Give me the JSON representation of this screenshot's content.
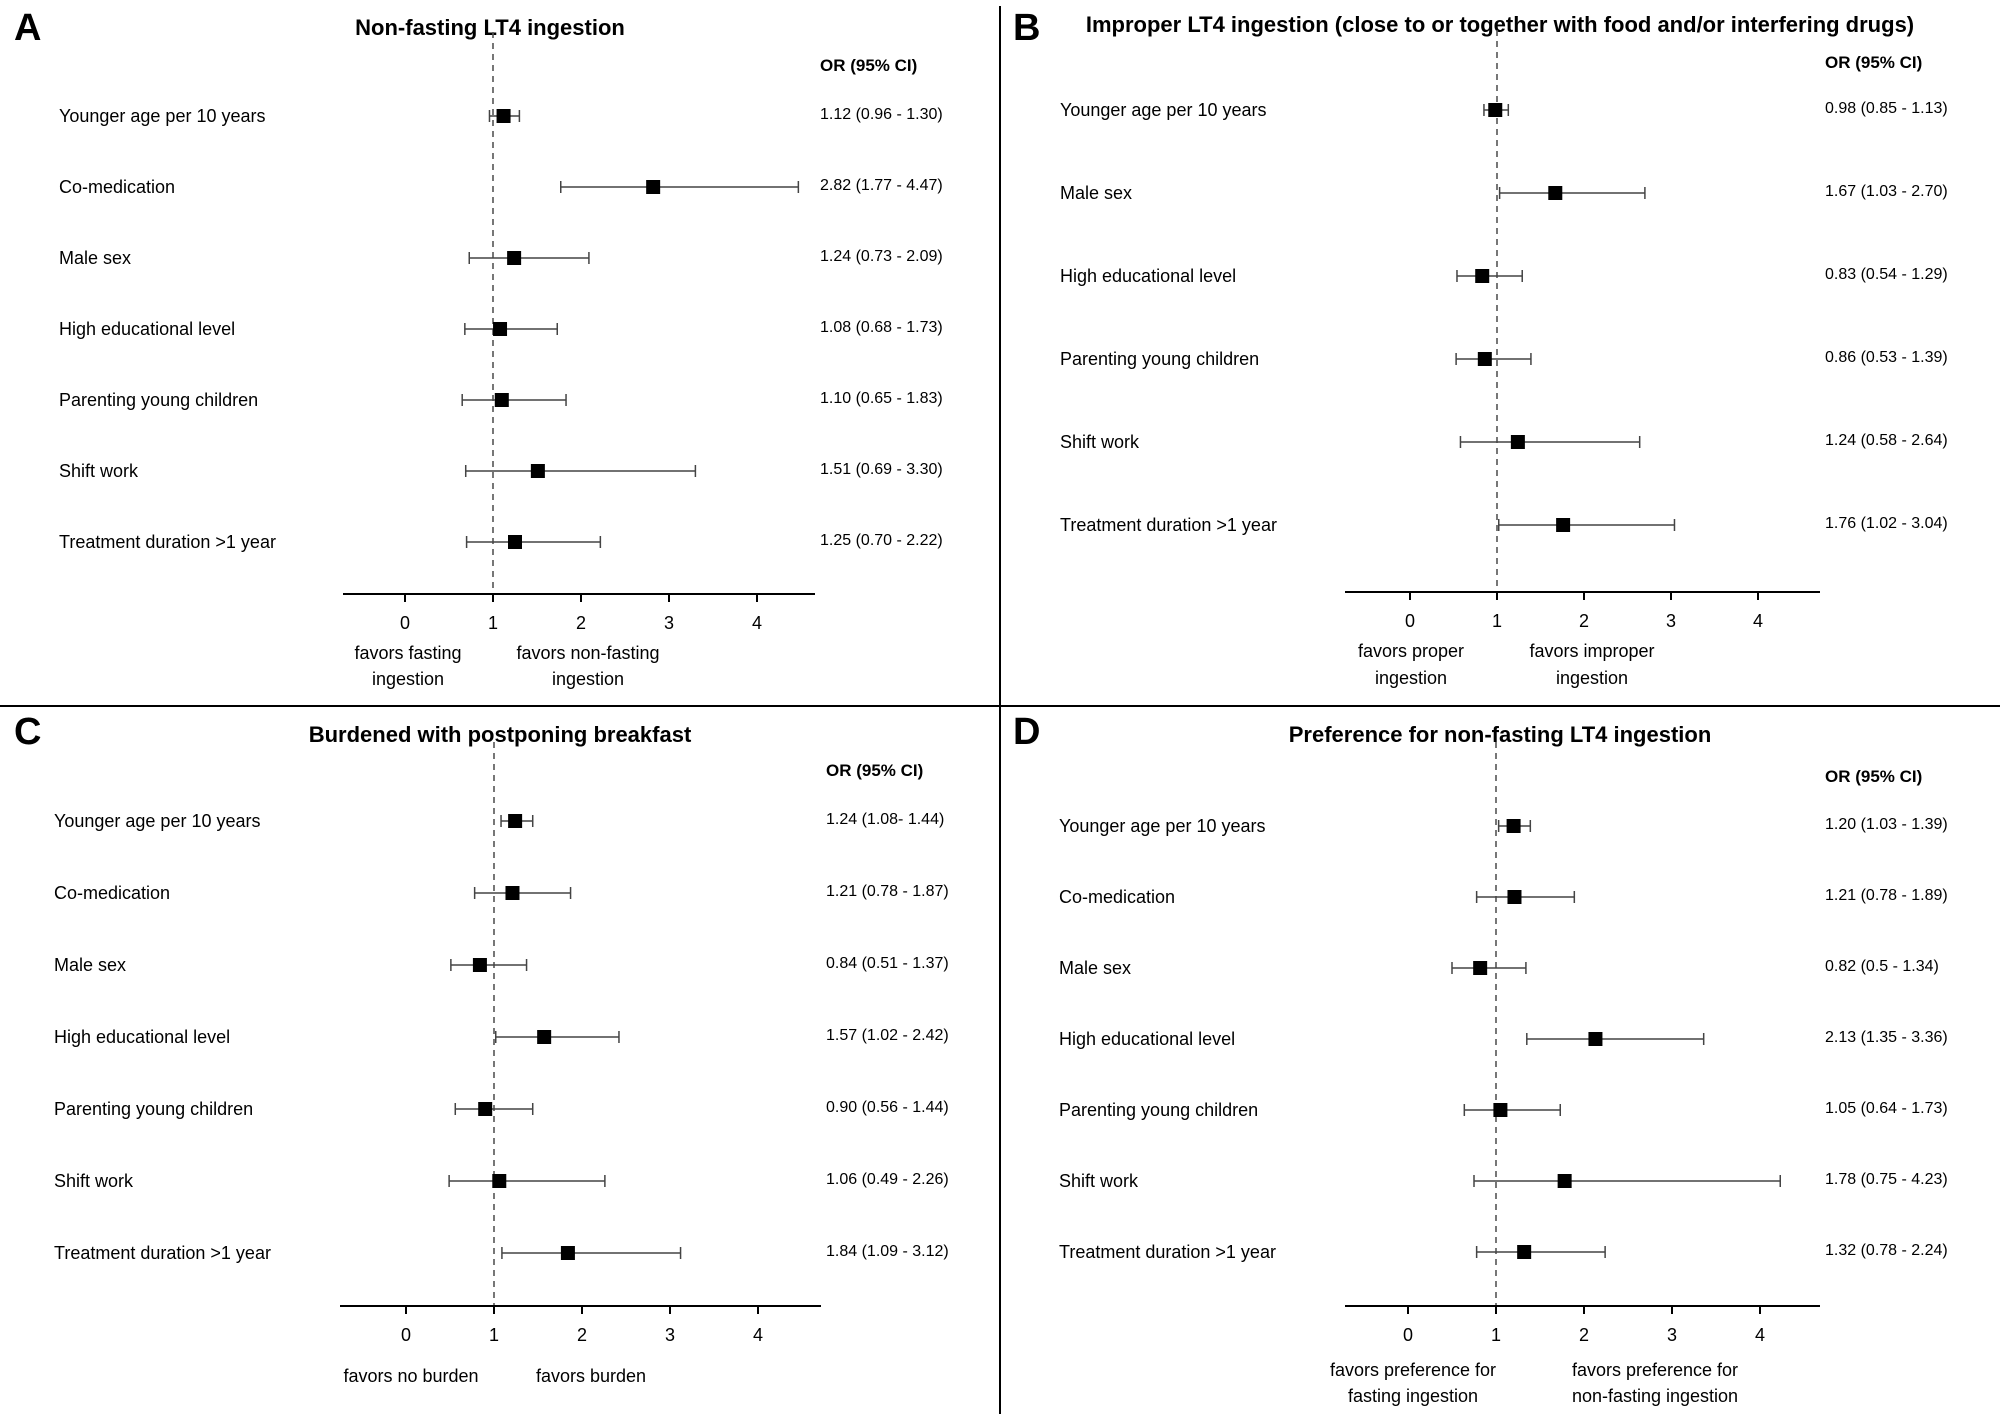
{
  "figure": {
    "or_header": "OR (95% CI)",
    "x_ticks": [
      0,
      1,
      2,
      3,
      4
    ]
  },
  "chart_data": [
    {
      "type": "scatter",
      "subtype": "forest-plot",
      "panel": "A",
      "title": "Non-fasting LT4 ingestion",
      "xlim": [
        -0.75,
        4.7
      ],
      "reference_line": 1,
      "favors_left": [
        "favors fasting",
        "ingestion"
      ],
      "favors_right": [
        "favors non-fasting",
        "ingestion"
      ],
      "rows": [
        {
          "label": "Younger age per 10 years",
          "or": 1.12,
          "lo": 0.96,
          "hi": 1.3,
          "text": "1.12 (0.96 - 1.30)"
        },
        {
          "label": "Co-medication",
          "or": 2.82,
          "lo": 1.77,
          "hi": 4.47,
          "text": "2.82 (1.77 - 4.47)"
        },
        {
          "label": "Male sex",
          "or": 1.24,
          "lo": 0.73,
          "hi": 2.09,
          "text": "1.24 (0.73 - 2.09)"
        },
        {
          "label": "High educational level",
          "or": 1.08,
          "lo": 0.68,
          "hi": 1.73,
          "text": "1.08 (0.68 - 1.73)"
        },
        {
          "label": "Parenting young children",
          "or": 1.1,
          "lo": 0.65,
          "hi": 1.83,
          "text": "1.10 (0.65 - 1.83)"
        },
        {
          "label": "Shift work",
          "or": 1.51,
          "lo": 0.69,
          "hi": 3.3,
          "text": "1.51 (0.69 - 3.30)"
        },
        {
          "label": "Treatment duration >1 year",
          "or": 1.25,
          "lo": 0.7,
          "hi": 2.22,
          "text": "1.25 (0.70 - 2.22)"
        }
      ]
    },
    {
      "type": "scatter",
      "subtype": "forest-plot",
      "panel": "B",
      "title": "Improper LT4 ingestion (close to or together with food and/or interfering drugs)",
      "xlim": [
        -0.75,
        4.7
      ],
      "reference_line": 1,
      "favors_left": [
        "favors proper",
        "ingestion"
      ],
      "favors_right": [
        "favors improper",
        "ingestion"
      ],
      "rows": [
        {
          "label": "Younger age per 10 years",
          "or": 0.98,
          "lo": 0.85,
          "hi": 1.13,
          "text": "0.98 (0.85 - 1.13)"
        },
        {
          "label": "Male sex",
          "or": 1.67,
          "lo": 1.03,
          "hi": 2.7,
          "text": "1.67 (1.03 - 2.70)"
        },
        {
          "label": "High educational level",
          "or": 0.83,
          "lo": 0.54,
          "hi": 1.29,
          "text": "0.83 (0.54 - 1.29)"
        },
        {
          "label": "Parenting young children",
          "or": 0.86,
          "lo": 0.53,
          "hi": 1.39,
          "text": "0.86 (0.53 - 1.39)"
        },
        {
          "label": "Shift work",
          "or": 1.24,
          "lo": 0.58,
          "hi": 2.64,
          "text": "1.24 (0.58 - 2.64)"
        },
        {
          "label": "Treatment duration >1 year",
          "or": 1.76,
          "lo": 1.02,
          "hi": 3.04,
          "text": "1.76 (1.02 - 3.04)"
        }
      ]
    },
    {
      "type": "scatter",
      "subtype": "forest-plot",
      "panel": "C",
      "title": "Burdened with postponing breakfast",
      "xlim": [
        -0.75,
        4.7
      ],
      "reference_line": 1,
      "favors_left": [
        "favors no burden"
      ],
      "favors_right": [
        "favors burden"
      ],
      "rows": [
        {
          "label": "Younger age per 10 years",
          "or": 1.24,
          "lo": 1.08,
          "hi": 1.44,
          "text": "1.24 (1.08- 1.44)"
        },
        {
          "label": "Co-medication",
          "or": 1.21,
          "lo": 0.78,
          "hi": 1.87,
          "text": "1.21 (0.78 - 1.87)"
        },
        {
          "label": "Male sex",
          "or": 0.84,
          "lo": 0.51,
          "hi": 1.37,
          "text": "0.84 (0.51 - 1.37)"
        },
        {
          "label": "High educational level",
          "or": 1.57,
          "lo": 1.02,
          "hi": 2.42,
          "text": "1.57 (1.02 - 2.42)"
        },
        {
          "label": "Parenting young children",
          "or": 0.9,
          "lo": 0.56,
          "hi": 1.44,
          "text": "0.90 (0.56 - 1.44)"
        },
        {
          "label": "Shift work",
          "or": 1.06,
          "lo": 0.49,
          "hi": 2.26,
          "text": "1.06 (0.49 - 2.26)"
        },
        {
          "label": "Treatment duration >1 year",
          "or": 1.84,
          "lo": 1.09,
          "hi": 3.12,
          "text": "1.84 (1.09 - 3.12)"
        }
      ]
    },
    {
      "type": "scatter",
      "subtype": "forest-plot",
      "panel": "D",
      "title": "Preference for non-fasting LT4 ingestion",
      "xlim": [
        -0.75,
        4.7
      ],
      "reference_line": 1,
      "favors_left": [
        "favors preference for",
        "fasting ingestion"
      ],
      "favors_right": [
        "favors preference for",
        "non-fasting ingestion"
      ],
      "rows": [
        {
          "label": "Younger age per 10 years",
          "or": 1.2,
          "lo": 1.03,
          "hi": 1.39,
          "text": "1.20 (1.03 - 1.39)"
        },
        {
          "label": "Co-medication",
          "or": 1.21,
          "lo": 0.78,
          "hi": 1.89,
          "text": "1.21 (0.78 - 1.89)"
        },
        {
          "label": "Male sex",
          "or": 0.82,
          "lo": 0.5,
          "hi": 1.34,
          "text": "0.82 (0.5 - 1.34)"
        },
        {
          "label": "High educational level",
          "or": 2.13,
          "lo": 1.35,
          "hi": 3.36,
          "text": "2.13 (1.35 - 3.36)"
        },
        {
          "label": "Parenting young children",
          "or": 1.05,
          "lo": 0.64,
          "hi": 1.73,
          "text": "1.05 (0.64 - 1.73)"
        },
        {
          "label": "Shift work",
          "or": 1.78,
          "lo": 0.75,
          "hi": 4.23,
          "text": "1.78 (0.75 - 4.23)"
        },
        {
          "label": "Treatment duration >1 year",
          "or": 1.32,
          "lo": 0.78,
          "hi": 2.24,
          "text": "1.32 (0.78 - 2.24)"
        }
      ]
    }
  ]
}
